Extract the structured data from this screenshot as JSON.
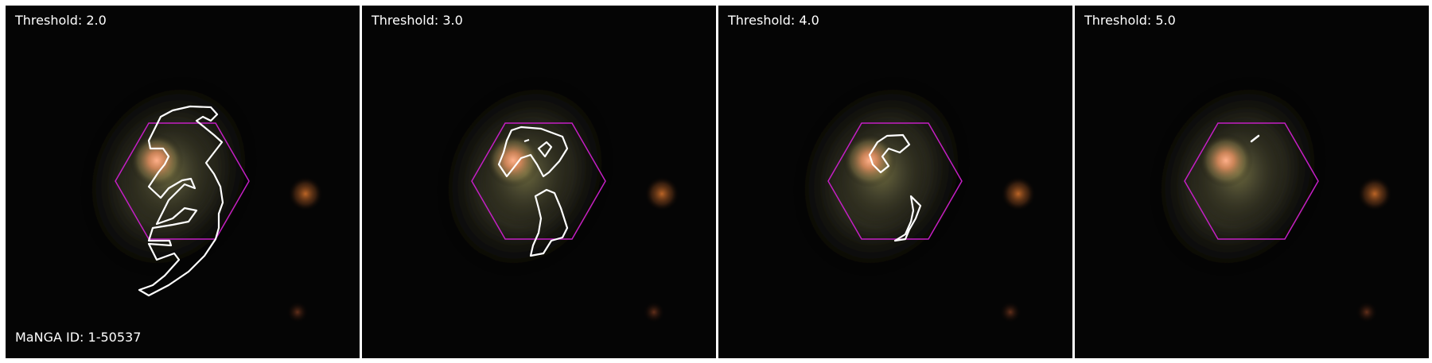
{
  "galaxy": {
    "manga_id_label": "MaNGA ID: 1-50537"
  },
  "panels": [
    {
      "threshold_label": "Threshold: 2.0"
    },
    {
      "threshold_label": "Threshold: 3.0"
    },
    {
      "threshold_label": "Threshold: 4.0"
    },
    {
      "threshold_label": "Threshold: 5.0"
    }
  ],
  "colors": {
    "hexagon": "#c41fc4",
    "contour": "#ffffff",
    "background": "#000000"
  }
}
